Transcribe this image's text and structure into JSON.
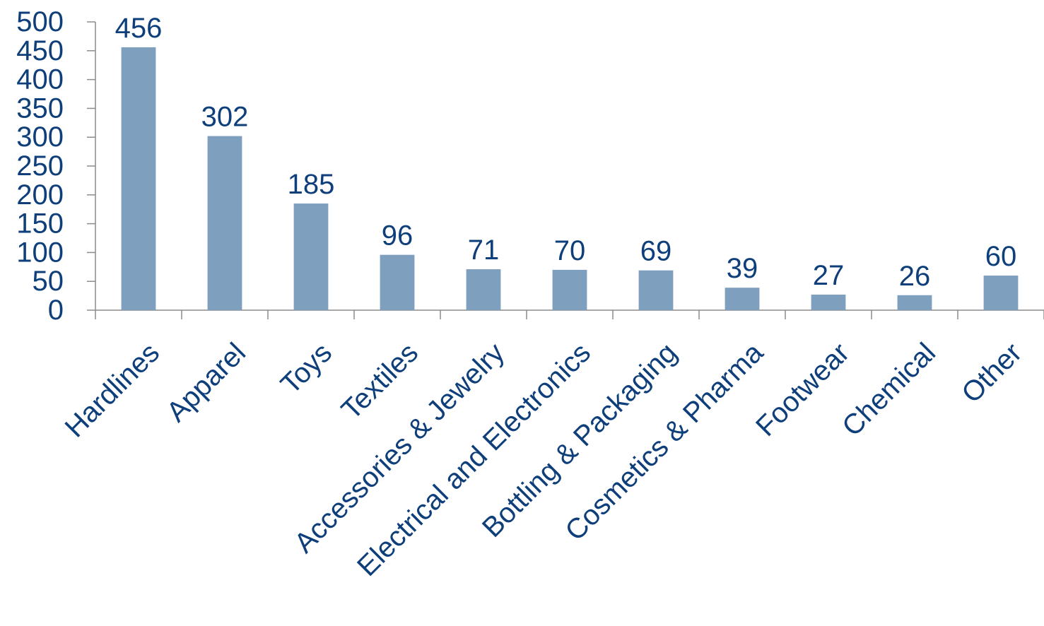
{
  "chart_data": {
    "type": "bar",
    "title": "",
    "xlabel": "",
    "ylabel": "",
    "categories": [
      "Hardlines",
      "Apparel",
      "Toys",
      "Textiles",
      "Accessories & Jewelry",
      "Electrical and Electronics",
      "Bottling & Packaging",
      "Cosmetics & Pharma",
      "Footwear",
      "Chemical",
      "Other"
    ],
    "values": [
      456,
      302,
      185,
      96,
      71,
      70,
      69,
      39,
      27,
      26,
      60
    ],
    "data_labels": [
      "456",
      "302",
      "185",
      "96",
      "71",
      "70",
      "69",
      "39",
      "27",
      "26",
      "60"
    ],
    "ylim": [
      0,
      500
    ],
    "yticks": [
      0,
      50,
      100,
      150,
      200,
      250,
      300,
      350,
      400,
      450,
      500
    ],
    "grid": false,
    "legend": "none",
    "colors": {
      "bar": "#7f9fbf",
      "text": "#0e3f7a",
      "axis": "#8c8c8c"
    }
  }
}
